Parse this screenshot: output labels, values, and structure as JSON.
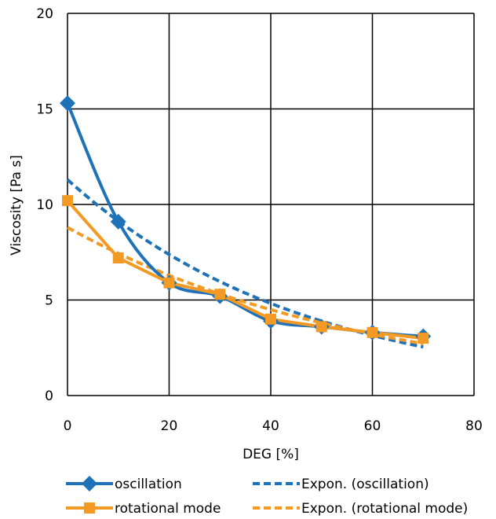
{
  "chart_data": {
    "type": "line",
    "xlabel": "DEG [%]",
    "ylabel": "Viscosity [Pa s]",
    "xlim": [
      0,
      80
    ],
    "ylim": [
      0,
      20
    ],
    "xticks": [
      "0",
      "20",
      "40",
      "60",
      "80"
    ],
    "yticks": [
      "0",
      "5",
      "10",
      "15",
      "20"
    ],
    "grid": true,
    "legend_position": "bottom",
    "series": [
      {
        "name": "oscillation",
        "style": "solid-smooth-diamond",
        "color": "#1f72b8",
        "x": [
          0,
          10,
          20,
          30,
          40,
          50,
          60,
          70
        ],
        "y": [
          15.3,
          9.1,
          5.9,
          5.2,
          3.9,
          3.6,
          3.3,
          3.1
        ]
      },
      {
        "name": "rotational mode",
        "style": "solid-square",
        "color": "#f39a25",
        "x": [
          0,
          10,
          20,
          30,
          40,
          50,
          60,
          70
        ],
        "y": [
          10.2,
          7.2,
          5.9,
          5.3,
          4.0,
          3.6,
          3.3,
          3.0
        ]
      },
      {
        "name": "Expon. (oscillation)",
        "style": "dashed",
        "color": "#1f72b8",
        "trend": {
          "a": 11.3,
          "b": -0.0213
        }
      },
      {
        "name": "Expon. (rotational mode)",
        "style": "dashed",
        "color": "#f39a25",
        "trend": {
          "a": 8.8,
          "b": -0.0168
        }
      }
    ]
  }
}
